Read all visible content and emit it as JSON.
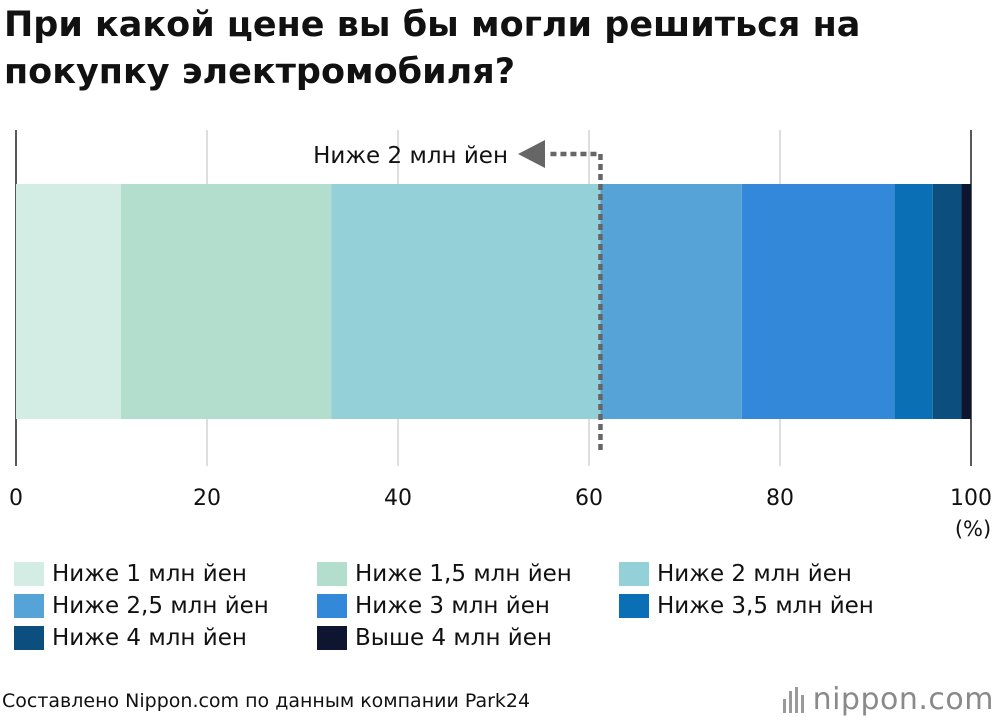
{
  "title": "При какой цене вы бы могли решиться на покупку электромобиля?",
  "annotation": "Ниже 2 млн йен",
  "source": "Составлено Nippon.com по данным компании Park24",
  "logo": "nippon.com",
  "chart_data": {
    "type": "bar",
    "orientation": "horizontal",
    "stacked": true,
    "title": "При какой цене вы бы могли решиться на покупку электромобиля?",
    "xlim": [
      0,
      100
    ],
    "xticks": [
      0,
      20,
      40,
      60,
      80,
      100
    ],
    "xunit": "(%)",
    "grid": true,
    "legend_position": "bottom",
    "series": [
      {
        "name": "Ниже 1 млн йен",
        "value": 11.0,
        "color": "#d3ede4"
      },
      {
        "name": "Ниже 1,5 млн йен",
        "value": 22.0,
        "color": "#b3ddcc"
      },
      {
        "name": "Ниже 2 млн йен",
        "value": 28.2,
        "color": "#94d0d7"
      },
      {
        "name": "Ниже 2,5 млн йен",
        "value": 14.8,
        "color": "#56a4d7"
      },
      {
        "name": "Ниже 3 млн йен",
        "value": 16.0,
        "color": "#3388d9"
      },
      {
        "name": "Ниже 3,5 млн йен",
        "value": 4.0,
        "color": "#0b6fb6"
      },
      {
        "name": "Ниже 4 млн йен",
        "value": 3.0,
        "color": "#0c4e7e"
      },
      {
        "name": "Выше 4 млн йен",
        "value": 1.0,
        "color": "#0d1530"
      }
    ],
    "annotation": {
      "text": "Ниже 2 млн йен",
      "at_value": 61.2
    }
  }
}
